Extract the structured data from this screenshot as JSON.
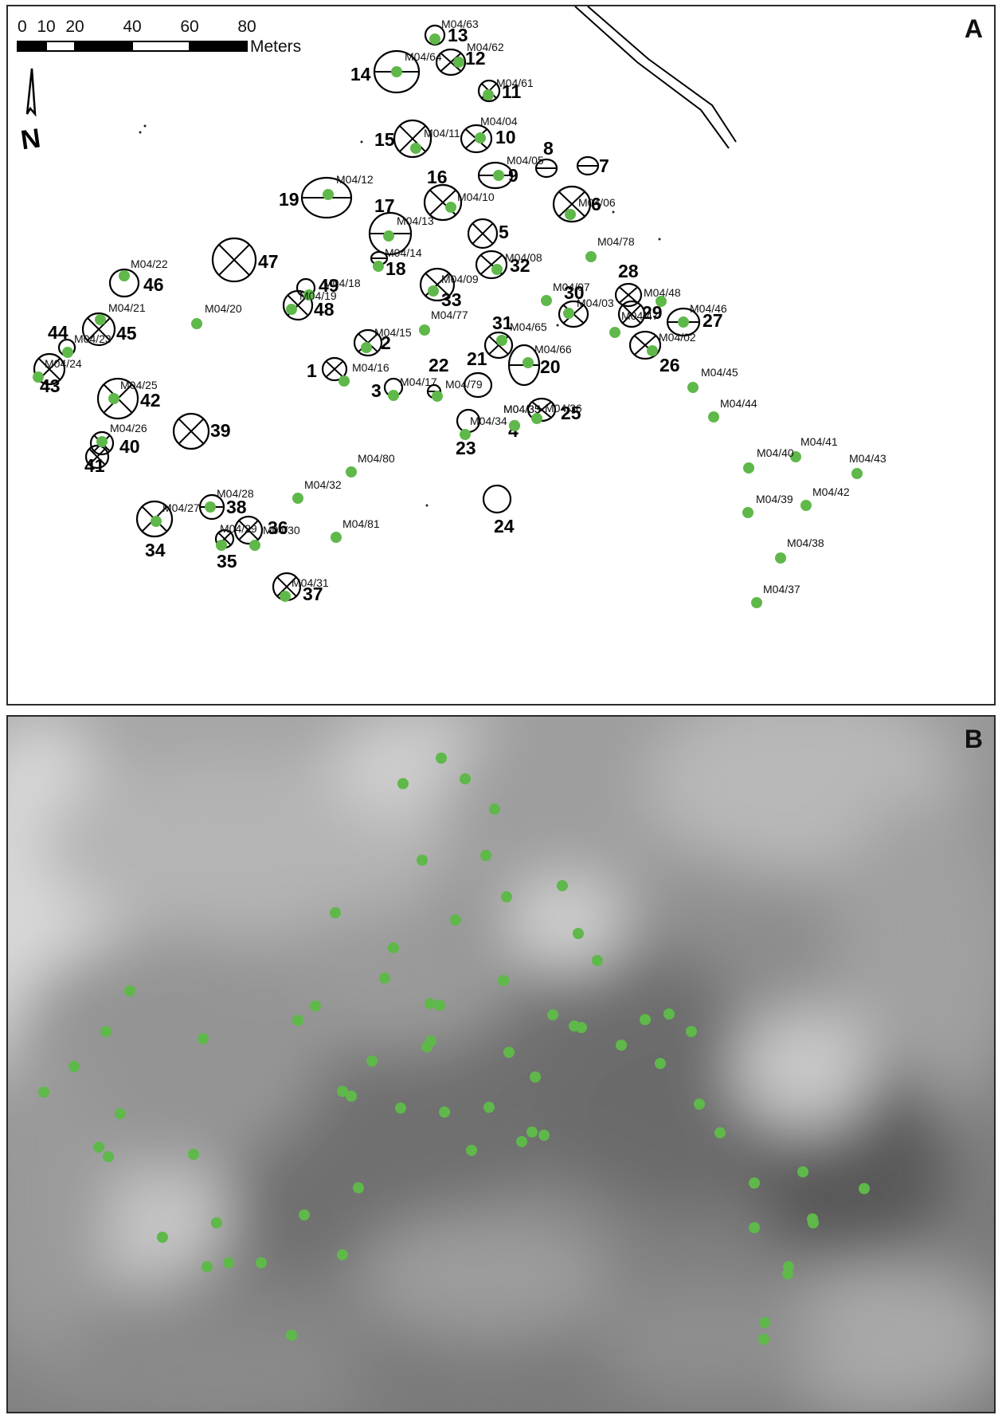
{
  "panel_a": {
    "letter": "A",
    "scale_bar": {
      "ticks": [
        "0",
        "10",
        "20",
        "40",
        "60",
        "80"
      ],
      "unit": "Meters"
    },
    "north_arrow_label": "N",
    "mounds": [
      {
        "num": "1",
        "style": "cross"
      },
      {
        "num": "2",
        "style": "cross"
      },
      {
        "num": "3",
        "style": "plain"
      },
      {
        "num": "4",
        "style": "plain"
      },
      {
        "num": "5",
        "style": "cross"
      },
      {
        "num": "6",
        "style": "cross"
      },
      {
        "num": "7",
        "style": "line"
      },
      {
        "num": "8",
        "style": "line"
      },
      {
        "num": "9",
        "style": "line"
      },
      {
        "num": "10",
        "style": "cross"
      },
      {
        "num": "11",
        "style": "cross"
      },
      {
        "num": "12",
        "style": "cross"
      },
      {
        "num": "13",
        "style": "plain"
      },
      {
        "num": "14",
        "style": "line"
      },
      {
        "num": "15",
        "style": "cross"
      },
      {
        "num": "16",
        "style": "cross"
      },
      {
        "num": "17",
        "style": "line"
      },
      {
        "num": "18",
        "style": "line"
      },
      {
        "num": "19",
        "style": "line"
      },
      {
        "num": "20",
        "style": "line"
      },
      {
        "num": "21",
        "style": "plain"
      },
      {
        "num": "22",
        "style": "line"
      },
      {
        "num": "23",
        "style": "plain"
      },
      {
        "num": "24",
        "style": "plain"
      },
      {
        "num": "25",
        "style": "cross"
      },
      {
        "num": "26",
        "style": "cross"
      },
      {
        "num": "27",
        "style": "line"
      },
      {
        "num": "28",
        "style": "cross"
      },
      {
        "num": "29",
        "style": "cross"
      },
      {
        "num": "30",
        "style": "cross"
      },
      {
        "num": "31",
        "style": "cross"
      },
      {
        "num": "32",
        "style": "cross"
      },
      {
        "num": "33",
        "style": "cross"
      },
      {
        "num": "34",
        "style": "cross"
      },
      {
        "num": "35",
        "style": "cross"
      },
      {
        "num": "36",
        "style": "cross"
      },
      {
        "num": "37",
        "style": "cross"
      },
      {
        "num": "38",
        "style": "line"
      },
      {
        "num": "39",
        "style": "cross"
      },
      {
        "num": "40",
        "style": "cross"
      },
      {
        "num": "41",
        "style": "cross"
      },
      {
        "num": "42",
        "style": "cross"
      },
      {
        "num": "43",
        "style": "cross"
      },
      {
        "num": "44",
        "style": "plain"
      },
      {
        "num": "45",
        "style": "cross"
      },
      {
        "num": "46",
        "style": "plain"
      },
      {
        "num": "47",
        "style": "cross"
      },
      {
        "num": "48",
        "style": "cross"
      },
      {
        "num": "49",
        "style": "plain"
      }
    ],
    "sample_points": [
      "M04/63",
      "M04/64",
      "M04/62",
      "M04/61",
      "M04/11",
      "M04/04",
      "M04/05",
      "M04/12",
      "M04/10",
      "M04/06",
      "M04/13",
      "M04/14",
      "M04/08",
      "M04/78",
      "M04/22",
      "M04/18",
      "M04/19",
      "M04/09",
      "M04/07",
      "M04/03",
      "M04/48",
      "M04/46",
      "M04/21",
      "M04/20",
      "M04/77",
      "M04/47",
      "M04/02",
      "M04/23",
      "M04/65",
      "M04/15",
      "M04/66",
      "M04/24",
      "M04/16",
      "M04/45",
      "M04/17",
      "M04/79",
      "M04/25",
      "M04/35",
      "M04/36",
      "M04/44",
      "M04/34",
      "M04/33",
      "M04/26",
      "M04/41",
      "M04/80",
      "M04/40",
      "M04/43",
      "M04/32",
      "M04/28",
      "M04/27",
      "M04/39",
      "M04/42",
      "M04/29",
      "M04/30",
      "M04/81",
      "M04/38",
      "M04/31",
      "M04/37"
    ]
  },
  "panel_b": {
    "letter": "B",
    "point_count": 71
  },
  "colors": {
    "sample_point": "#5fb84a",
    "line": "#000000",
    "background_a": "#ffffff",
    "relief_dark": "#5a5a5a",
    "relief_light": "#d8d8d8"
  }
}
